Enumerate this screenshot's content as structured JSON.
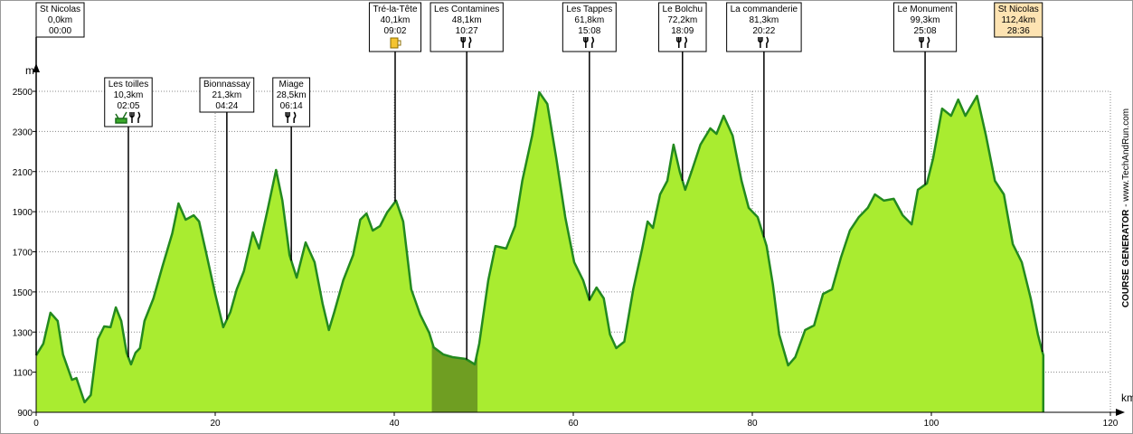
{
  "chart_data": {
    "type": "area",
    "x_axis_label": "km",
    "y_axis_label": "m",
    "credit_title": "COURSE GENERATOR",
    "credit_url": "- www.TechAndRun.com",
    "xlim": [
      0,
      120
    ],
    "xticks": [
      0,
      20,
      40,
      60,
      80,
      100,
      120
    ],
    "ylim": [
      900,
      2500
    ],
    "yticks": [
      900,
      1100,
      1300,
      1500,
      1700,
      1900,
      2100,
      2300,
      2500
    ],
    "grid": true,
    "fill_color": "#a9ec30",
    "line_color": "#238a1e",
    "shaded_color": "#6f9e22",
    "shaded_range": [
      44.2,
      49.3
    ],
    "x": [
      0,
      0.8,
      1.6,
      2.4,
      3.0,
      4.0,
      4.5,
      5.4,
      6.1,
      6.9,
      7.6,
      8.3,
      8.9,
      9.5,
      10.1,
      10.6,
      11.1,
      11.6,
      12.1,
      13.1,
      14.1,
      15.2,
      15.9,
      16.7,
      17.6,
      18.2,
      19.0,
      20.0,
      20.9,
      21.7,
      22.4,
      23.2,
      24.2,
      24.9,
      25.9,
      26.8,
      27.5,
      28.3,
      29.1,
      30.1,
      31.1,
      32.0,
      32.7,
      33.3,
      34.3,
      35.4,
      36.2,
      36.9,
      37.6,
      38.4,
      39.2,
      40.2,
      41.0,
      41.9,
      42.9,
      43.9,
      44.4,
      45.5,
      46.5,
      48.0,
      49.0,
      49.5,
      50.5,
      51.3,
      52.5,
      53.5,
      54.3,
      55.4,
      56.2,
      57.1,
      58.1,
      59.1,
      60.1,
      61.1,
      61.8,
      62.6,
      63.4,
      64.1,
      64.8,
      65.7,
      66.7,
      67.7,
      68.3,
      68.9,
      69.7,
      70.5,
      71.2,
      71.9,
      72.5,
      73.2,
      74.2,
      75.3,
      76.0,
      76.8,
      77.8,
      78.8,
      79.6,
      80.6,
      81.6,
      82.3,
      83.0,
      84.0,
      84.8,
      85.9,
      86.9,
      87.9,
      88.9,
      89.9,
      90.9,
      91.9,
      92.9,
      93.7,
      94.7,
      95.8,
      96.8,
      97.8,
      98.5,
      99.5,
      100.2,
      101.2,
      102.2,
      103.0,
      103.8,
      105.1,
      106.1,
      107.1,
      108.1,
      109.1,
      110.1,
      111.1,
      111.9,
      112.5
    ],
    "values": [
      1184,
      1242,
      1396,
      1355,
      1188,
      1062,
      1071,
      950,
      986,
      1265,
      1328,
      1324,
      1423,
      1355,
      1197,
      1139,
      1197,
      1220,
      1355,
      1468,
      1626,
      1792,
      1941,
      1860,
      1882,
      1851,
      1693,
      1490,
      1324,
      1400,
      1513,
      1603,
      1797,
      1716,
      1919,
      2108,
      1955,
      1684,
      1571,
      1747,
      1648,
      1441,
      1310,
      1400,
      1558,
      1684,
      1860,
      1891,
      1806,
      1828,
      1896,
      1955,
      1851,
      1513,
      1387,
      1297,
      1224,
      1188,
      1175,
      1166,
      1139,
      1242,
      1558,
      1729,
      1716,
      1828,
      2054,
      2279,
      2495,
      2437,
      2167,
      1873,
      1648,
      1558,
      1459,
      1522,
      1468,
      1288,
      1220,
      1252,
      1513,
      1716,
      1851,
      1819,
      1986,
      2054,
      2234,
      2099,
      2009,
      2099,
      2234,
      2315,
      2288,
      2378,
      2279,
      2054,
      1919,
      1873,
      1729,
      1535,
      1288,
      1134,
      1175,
      1310,
      1333,
      1490,
      1513,
      1671,
      1806,
      1873,
      1919,
      1986,
      1955,
      1964,
      1882,
      1837,
      2009,
      2041,
      2167,
      2414,
      2378,
      2459,
      2378,
      2477,
      2279,
      2054,
      1986,
      1738,
      1648,
      1468,
      1288,
      1184
    ],
    "waypoints": [
      {
        "name": "St Nicolas",
        "km": 0,
        "km_label": "0,0km",
        "time": "00:00",
        "icons": []
      },
      {
        "name": "Les toilles",
        "km": 10.3,
        "km_label": "10,3km",
        "time": "02:05",
        "icons": [
          "toilet",
          "food"
        ]
      },
      {
        "name": "Bionnassay",
        "km": 21.3,
        "km_label": "21,3km",
        "time": "04:24",
        "icons": []
      },
      {
        "name": "Miage",
        "km": 28.5,
        "km_label": "28,5km",
        "time": "06:14",
        "icons": [
          "food"
        ]
      },
      {
        "name": "Tré-la-Tête",
        "km": 40.1,
        "km_label": "40,1km",
        "time": "09:02",
        "icons": [
          "drink"
        ]
      },
      {
        "name": "Les Contamines",
        "km": 48.1,
        "km_label": "48,1km",
        "time": "10:27",
        "icons": [
          "food"
        ]
      },
      {
        "name": "Les Tappes",
        "km": 61.8,
        "km_label": "61,8km",
        "time": "15:08",
        "icons": [
          "food"
        ]
      },
      {
        "name": "Le Bolchu",
        "km": 72.2,
        "km_label": "72,2km",
        "time": "18:09",
        "icons": [
          "food"
        ]
      },
      {
        "name": "La commanderie",
        "km": 81.3,
        "km_label": "81,3km",
        "time": "20:22",
        "icons": [
          "food"
        ]
      },
      {
        "name": "Le Monument",
        "km": 99.3,
        "km_label": "99,3km",
        "time": "25:08",
        "icons": [
          "food"
        ]
      },
      {
        "name": "St Nicolas",
        "km": 112.4,
        "km_label": "112,4km",
        "time": "28:36",
        "icons": [],
        "color": "#fde3b2"
      }
    ]
  }
}
